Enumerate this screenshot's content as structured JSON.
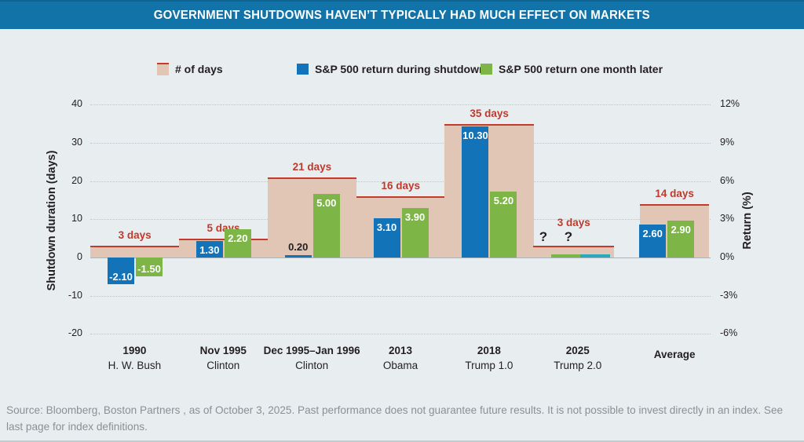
{
  "header": {
    "title": "GOVERNMENT SHUTDOWNS HAVEN’T TYPICALLY HAD MUCH EFFECT ON MARKETS"
  },
  "legend": {
    "items": [
      {
        "label": "# of days",
        "color": "#e2c6b5",
        "top_border": "#c23b2c"
      },
      {
        "label": "S&P 500 return during shutdown",
        "color": "#1373b9",
        "top_border": ""
      },
      {
        "label": "S&P 500 return one month later",
        "color": "#7db546",
        "top_border": ""
      }
    ]
  },
  "chart_data": {
    "type": "bar",
    "title": "GOVERNMENT SHUTDOWNS HAVEN’T TYPICALLY HAD MUCH EFFECT ON MARKETS",
    "categories": [
      {
        "line1": "1990",
        "line2": "H. W. Bush"
      },
      {
        "line1": "Nov 1995",
        "line2": "Clinton"
      },
      {
        "line1": "Dec 1995–Jan 1996",
        "line2": "Clinton"
      },
      {
        "line1": "2013",
        "line2": "Obama"
      },
      {
        "line1": "2018",
        "line2": "Trump 1.0"
      },
      {
        "line1": "2025",
        "line2": "Trump 2.0"
      },
      {
        "line1": "Average",
        "line2": ""
      }
    ],
    "series": [
      {
        "name": "# of days",
        "axis": "left",
        "color": "#e2c6b5",
        "values": [
          3,
          5,
          21,
          16,
          35,
          3,
          14
        ],
        "labels": [
          "3 days",
          "5 days",
          "21 days",
          "16 days",
          "35 days",
          "3 days",
          "14 days"
        ]
      },
      {
        "name": "S&P 500 return during shutdown",
        "axis": "right",
        "color": "#1373b9",
        "values": [
          -2.1,
          1.3,
          0.2,
          3.1,
          10.3,
          null,
          2.6
        ],
        "labels": [
          "-2.10",
          "1.30",
          "0.20",
          "3.10",
          "10.30",
          "?",
          "2.60"
        ]
      },
      {
        "name": "S&P 500 return one month later",
        "axis": "right",
        "color": "#7db546",
        "values": [
          -1.5,
          2.2,
          5.0,
          3.9,
          5.2,
          null,
          2.9
        ],
        "labels": [
          "-1.50",
          "2.20",
          "5.00",
          "3.90",
          "5.20",
          "?",
          "2.90"
        ]
      }
    ],
    "unknown_category_index": 5,
    "unknown_stub_colors": [
      "#7db546",
      "#2aa9bd"
    ],
    "left_axis": {
      "label": "Shutdown duration (days)",
      "ticks": [
        40,
        30,
        20,
        10,
        0,
        -10,
        -20
      ],
      "range": [
        -20,
        40
      ]
    },
    "right_axis": {
      "label": "Return (%)",
      "ticks": [
        "12%",
        "9%",
        "6%",
        "3%",
        "0%",
        "-3%",
        "-6%"
      ],
      "range": [
        -6,
        12
      ]
    },
    "grid": "dotted horizontal"
  },
  "footer": {
    "source": "Source: Bloomberg, Boston Partners , as of October 3, 2025. Past performance does not guarantee future results. It is not possible to invest directly in an index. See last page for index definitions."
  }
}
